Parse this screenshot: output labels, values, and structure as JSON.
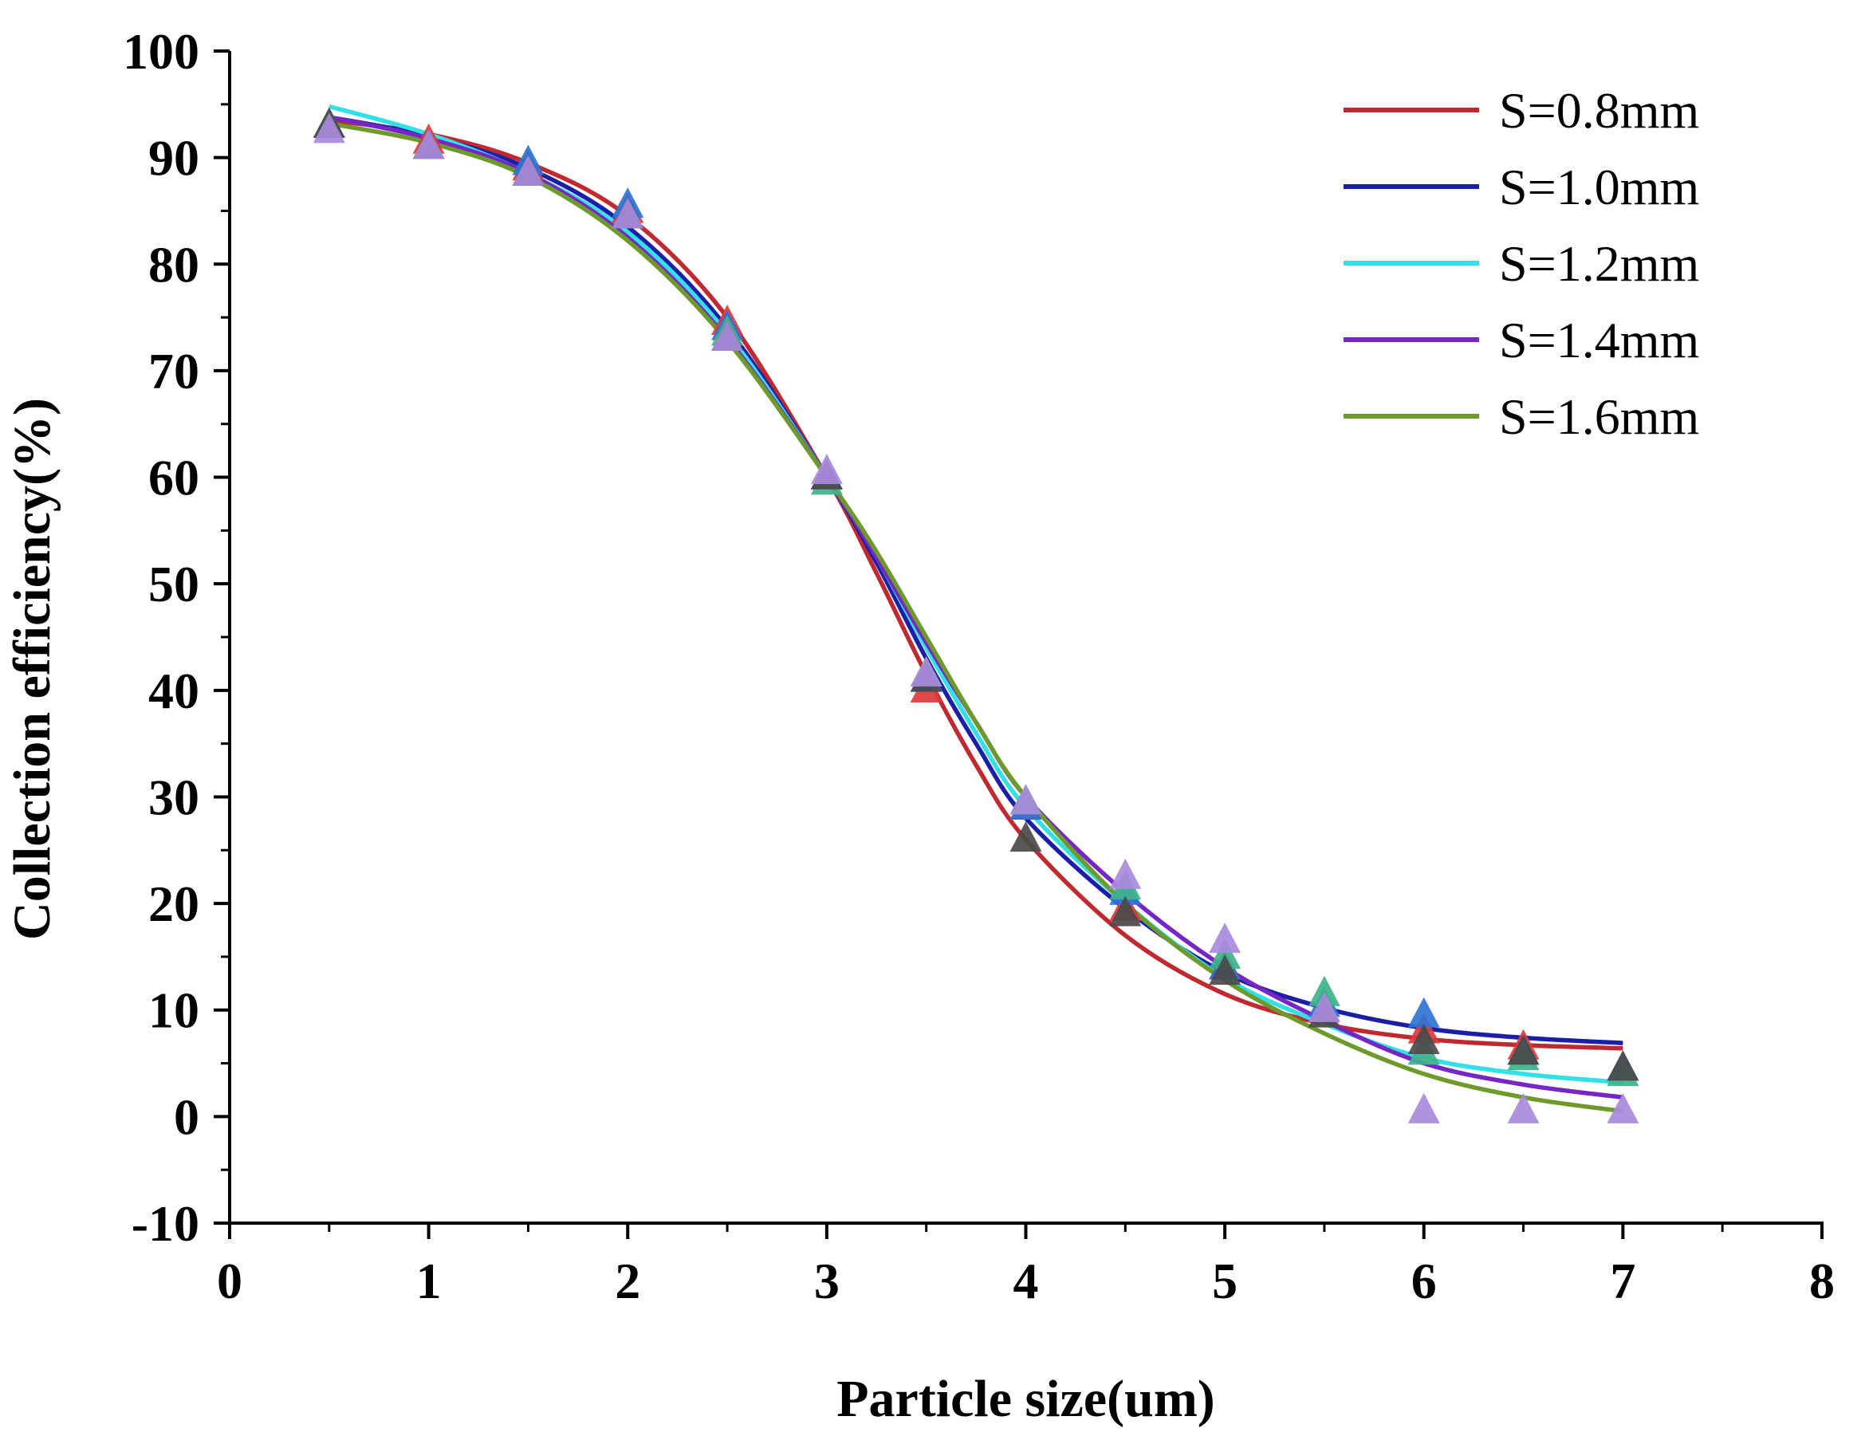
{
  "chart_data": {
    "type": "scatter",
    "title": "",
    "xlabel": "Particle size(um)",
    "ylabel": "Collection efficiency(%)",
    "xlim": [
      0,
      8
    ],
    "ylim": [
      -10,
      100
    ],
    "xticks": [
      0,
      1,
      2,
      3,
      4,
      5,
      6,
      7,
      8
    ],
    "yticks": [
      -10,
      0,
      10,
      20,
      30,
      40,
      50,
      60,
      70,
      80,
      90,
      100
    ],
    "xtick_labels": [
      "0",
      "1",
      "2",
      "3",
      "4",
      "5",
      "6",
      "7",
      "8"
    ],
    "ytick_labels": [
      "-10",
      "0",
      "10",
      "20",
      "30",
      "40",
      "50",
      "60",
      "70",
      "80",
      "90",
      "100"
    ],
    "legend_position": "top-right",
    "x": [
      0.5,
      1,
      1.5,
      2,
      2.5,
      3,
      3.5,
      4,
      4.5,
      5,
      5.5,
      6,
      6.5,
      7
    ],
    "series": [
      {
        "name": "S=0.8mm",
        "line_color": "#c0292f",
        "marker_color": "#e03a3a",
        "points": [
          93,
          91.5,
          89,
          85,
          74.5,
          60,
          40,
          29,
          19.5,
          14,
          10,
          8,
          6.5,
          4.5
        ],
        "fit": [
          [
            0.5,
            93.5
          ],
          [
            1,
            92.2
          ],
          [
            1.5,
            89.5
          ],
          [
            2,
            84.5
          ],
          [
            2.5,
            75
          ],
          [
            3,
            60
          ],
          [
            3.25,
            51
          ],
          [
            3.5,
            41.5
          ],
          [
            3.75,
            33
          ],
          [
            4,
            26
          ],
          [
            4.5,
            17
          ],
          [
            5,
            11.5
          ],
          [
            5.5,
            8.7
          ],
          [
            6,
            7.3
          ],
          [
            6.5,
            6.7
          ],
          [
            7,
            6.4
          ]
        ]
      },
      {
        "name": "S=1.0mm",
        "line_color": "#1b1fa8",
        "marker_color": "#2d74d6",
        "points": [
          93,
          91,
          89.5,
          85.5,
          74,
          60,
          41,
          29,
          21,
          14,
          10.5,
          9.5,
          6,
          4.5
        ],
        "fit": [
          [
            0.5,
            93.8
          ],
          [
            1,
            92
          ],
          [
            1.5,
            89
          ],
          [
            2,
            83.5
          ],
          [
            2.5,
            74
          ],
          [
            3,
            60
          ],
          [
            3.25,
            52
          ],
          [
            3.5,
            43
          ],
          [
            3.75,
            35
          ],
          [
            4,
            28
          ],
          [
            4.5,
            19.5
          ],
          [
            5,
            13.5
          ],
          [
            5.5,
            10.2
          ],
          [
            6,
            8.3
          ],
          [
            6.5,
            7.4
          ],
          [
            7,
            6.9
          ]
        ]
      },
      {
        "name": "S=1.2mm",
        "line_color": "#33e0e6",
        "marker_color": "#3fb28c",
        "points": [
          93,
          91,
          88.5,
          84.5,
          73.5,
          59.5,
          41.5,
          29.5,
          21.5,
          15,
          11.5,
          6,
          5.5,
          4
        ],
        "fit": [
          [
            0.5,
            94.8
          ],
          [
            1,
            92.2
          ],
          [
            1.5,
            88.5
          ],
          [
            2,
            83
          ],
          [
            2.5,
            73.5
          ],
          [
            3,
            60
          ],
          [
            3.25,
            52.5
          ],
          [
            3.5,
            44
          ],
          [
            3.75,
            36
          ],
          [
            4,
            29
          ],
          [
            4.5,
            20
          ],
          [
            5,
            13
          ],
          [
            5.5,
            8.7
          ],
          [
            6,
            5.5
          ],
          [
            6.5,
            4
          ],
          [
            7,
            3.2
          ]
        ]
      },
      {
        "name": "S=1.4mm",
        "line_color": "#7526c4",
        "marker_color": "#4a4a4a",
        "points": [
          93,
          91,
          88.5,
          84.5,
          73,
          60,
          41,
          26,
          19,
          13.5,
          9.5,
          7,
          6,
          4.5
        ],
        "fit": [
          [
            0.5,
            93.8
          ],
          [
            1,
            91.8
          ],
          [
            1.5,
            88.5
          ],
          [
            2,
            82.5
          ],
          [
            2.5,
            73
          ],
          [
            3,
            60
          ],
          [
            3.25,
            52.5
          ],
          [
            3.5,
            44.5
          ],
          [
            3.75,
            37
          ],
          [
            4,
            30
          ],
          [
            4.5,
            21
          ],
          [
            5,
            14
          ],
          [
            5.5,
            9
          ],
          [
            6,
            5
          ],
          [
            6.5,
            3
          ],
          [
            7,
            1.8
          ]
        ]
      },
      {
        "name": "S=1.6mm",
        "line_color": "#6e9a2c",
        "marker_color": "#a98adb",
        "points": [
          92.5,
          91,
          88.5,
          84.5,
          73,
          60.5,
          41.5,
          29.5,
          22.5,
          16.5,
          10,
          0.5,
          0.5,
          0.5
        ],
        "fit": [
          [
            0.5,
            93.2
          ],
          [
            1,
            91.4
          ],
          [
            1.5,
            88.2
          ],
          [
            2,
            82.2
          ],
          [
            2.5,
            72.8
          ],
          [
            3,
            60
          ],
          [
            3.25,
            53
          ],
          [
            3.5,
            45
          ],
          [
            3.75,
            37
          ],
          [
            4,
            30
          ],
          [
            4.5,
            20
          ],
          [
            5,
            12.8
          ],
          [
            5.5,
            7.8
          ],
          [
            6,
            4
          ],
          [
            6.5,
            1.8
          ],
          [
            7,
            0.5
          ]
        ]
      }
    ]
  }
}
